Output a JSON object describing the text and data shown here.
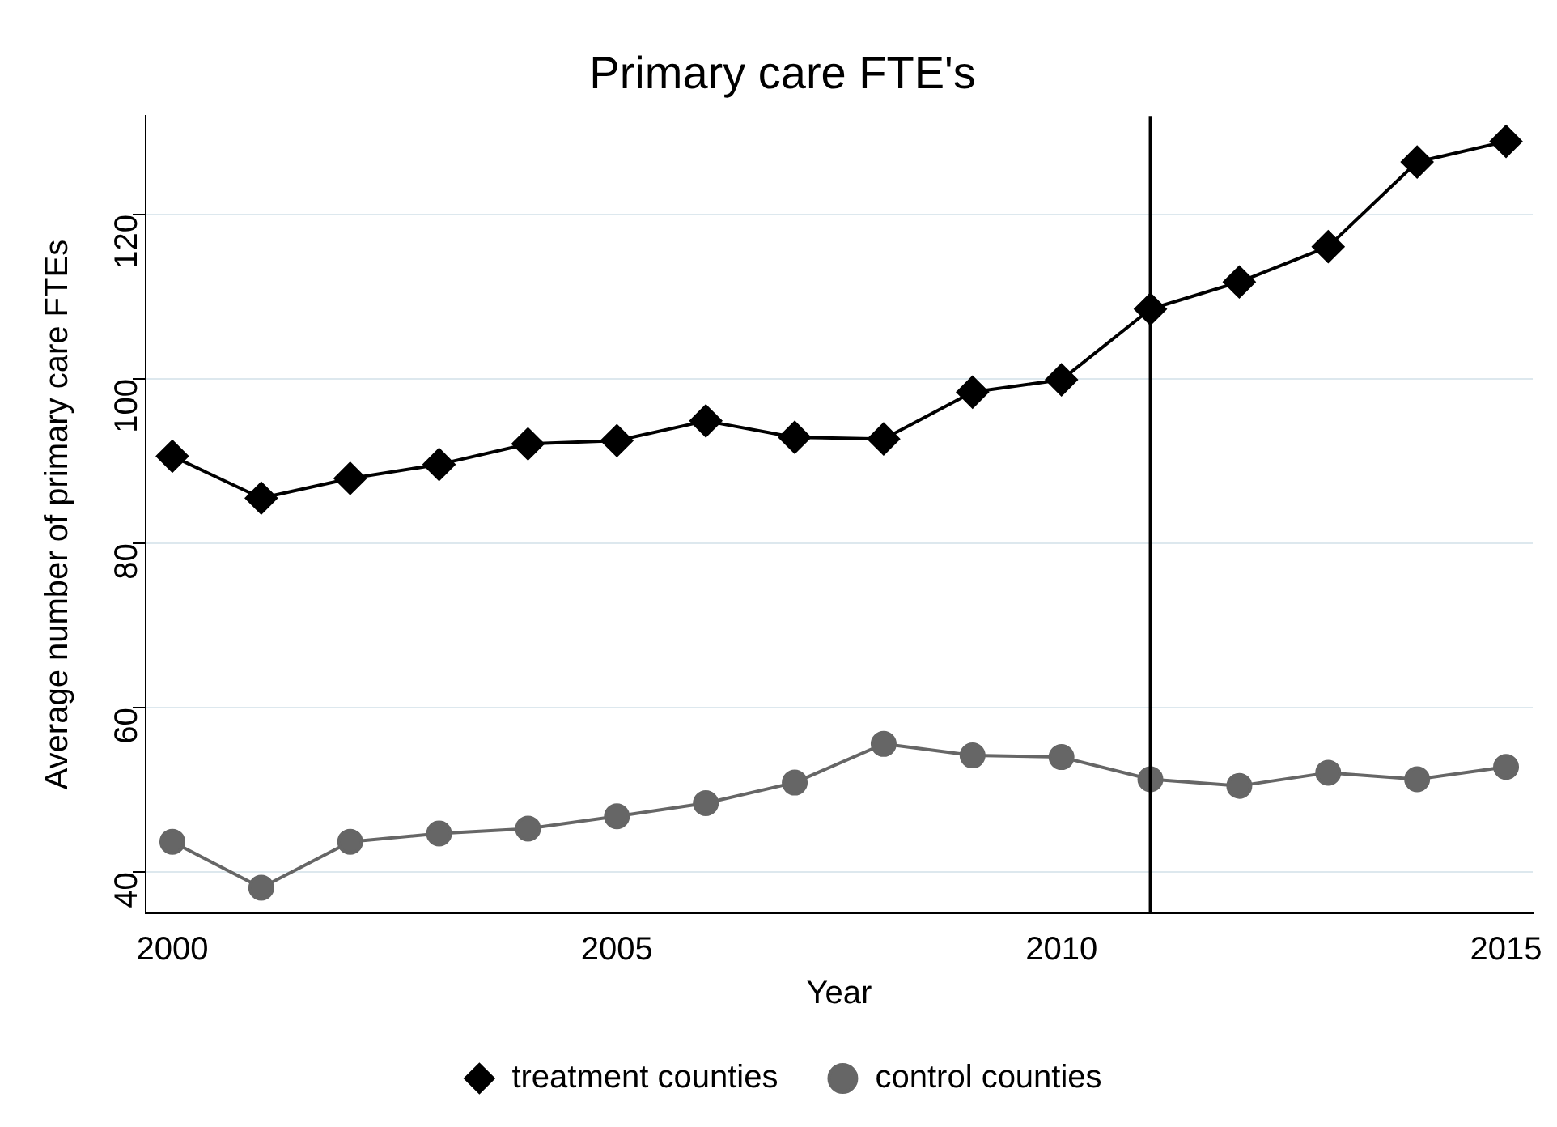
{
  "chart_data": {
    "type": "line",
    "title": "Primary care FTE's",
    "xlabel": "Year",
    "ylabel": "Average number of primary care FTEs",
    "x": [
      2000,
      2001,
      2002,
      2003,
      2004,
      2005,
      2006,
      2007,
      2008,
      2009,
      2010,
      2011,
      2012,
      2013,
      2014,
      2015
    ],
    "series": [
      {
        "name": "treatment counties",
        "color": "#000000",
        "marker": "diamond",
        "values": [
          90.6,
          85.5,
          87.9,
          89.6,
          92.1,
          92.5,
          94.9,
          92.9,
          92.7,
          98.4,
          99.9,
          108.5,
          111.8,
          116.1,
          126.4,
          128.9
        ]
      },
      {
        "name": "control counties",
        "color": "#666666",
        "marker": "circle",
        "values": [
          43.7,
          38.1,
          43.7,
          44.7,
          45.3,
          46.8,
          48.4,
          50.9,
          55.6,
          54.2,
          54.0,
          51.3,
          50.5,
          52.1,
          51.3,
          52.8
        ]
      }
    ],
    "xlim": [
      1999.7,
      2015.3
    ],
    "xticks": [
      2000,
      2005,
      2010,
      2015
    ],
    "ylim": [
      35,
      132
    ],
    "yticks": [
      40,
      60,
      80,
      100,
      120
    ],
    "ref_lines": [
      {
        "axis": "x",
        "value": 2011,
        "color": "#000000"
      }
    ],
    "grid": "y",
    "legend": "bottom"
  }
}
